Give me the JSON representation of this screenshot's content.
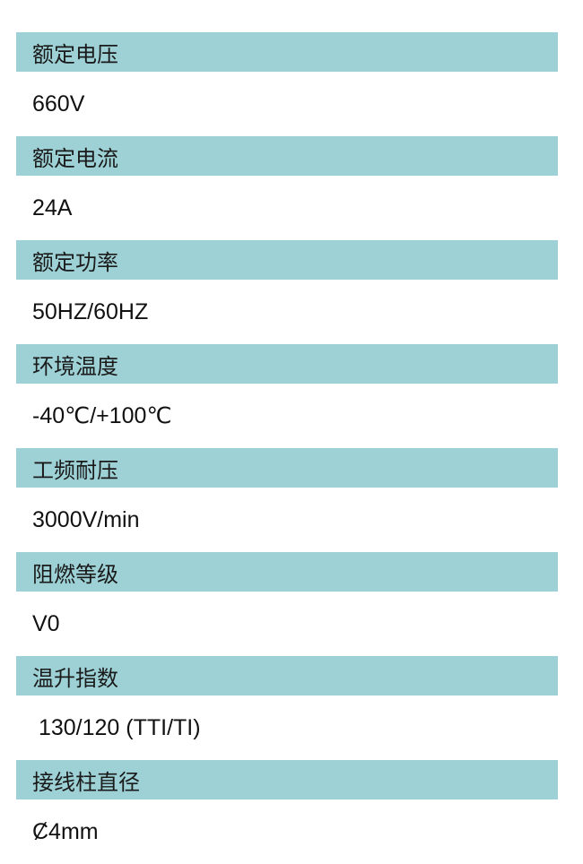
{
  "specs": [
    {
      "label": "额定电压",
      "value": "660V"
    },
    {
      "label": "额定电流",
      "value": "24A"
    },
    {
      "label": "额定功率",
      "value": "50HZ/60HZ"
    },
    {
      "label": "环境温度",
      "value": "-40℃/+100℃"
    },
    {
      "label": "工频耐压",
      "value": "3000V/min"
    },
    {
      "label": "阻燃等级",
      "value": "V0"
    },
    {
      "label": "温升指数",
      "value": " 130/120 (TTI/TI)"
    },
    {
      "label": "接线柱直径",
      "value": "Ȼ4mm"
    }
  ],
  "colors": {
    "header_bar": "#9dd1d6",
    "text": "#1a1a1a"
  }
}
